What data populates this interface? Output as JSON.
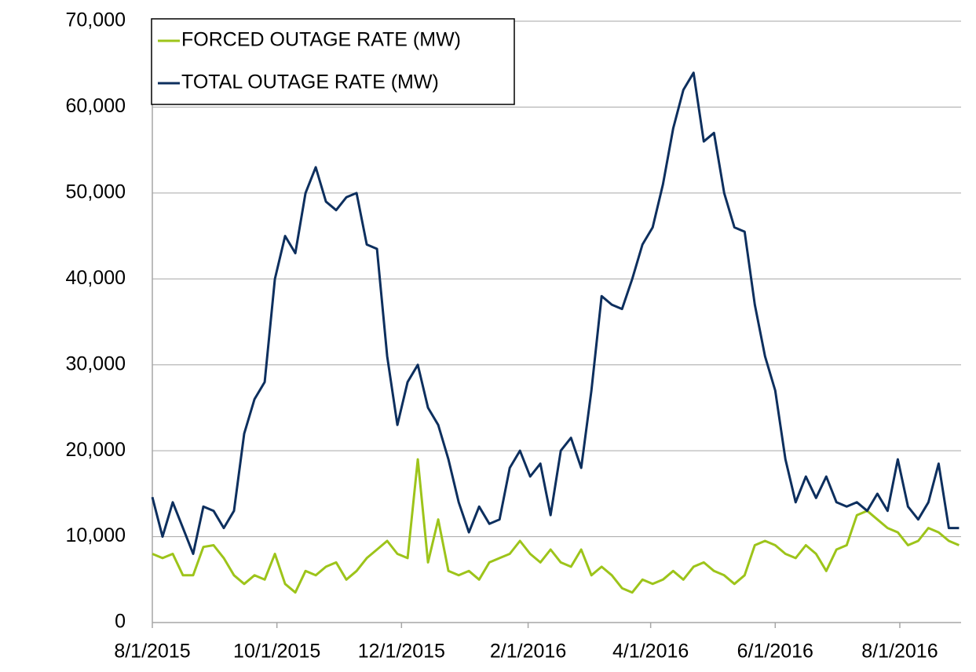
{
  "chart_data": {
    "type": "line",
    "x": [
      "8/1/2015",
      "8/6/2015",
      "8/11/2015",
      "8/16/2015",
      "8/21/2015",
      "8/26/2015",
      "8/31/2015",
      "9/5/2015",
      "9/10/2015",
      "9/15/2015",
      "9/20/2015",
      "9/25/2015",
      "9/30/2015",
      "10/5/2015",
      "10/10/2015",
      "10/15/2015",
      "10/20/2015",
      "10/25/2015",
      "10/30/2015",
      "11/4/2015",
      "11/9/2015",
      "11/14/2015",
      "11/19/2015",
      "11/24/2015",
      "11/29/2015",
      "12/4/2015",
      "12/9/2015",
      "12/14/2015",
      "12/19/2015",
      "12/24/2015",
      "12/29/2015",
      "1/3/2016",
      "1/8/2016",
      "1/13/2016",
      "1/18/2016",
      "1/23/2016",
      "1/28/2016",
      "2/2/2016",
      "2/7/2016",
      "2/12/2016",
      "2/17/2016",
      "2/22/2016",
      "2/27/2016",
      "3/3/2016",
      "3/8/2016",
      "3/13/2016",
      "3/18/2016",
      "3/23/2016",
      "3/28/2016",
      "4/2/2016",
      "4/7/2016",
      "4/12/2016",
      "4/17/2016",
      "4/22/2016",
      "4/27/2016",
      "5/2/2016",
      "5/7/2016",
      "5/12/2016",
      "5/17/2016",
      "5/22/2016",
      "5/27/2016",
      "6/1/2016",
      "6/6/2016",
      "6/11/2016",
      "6/16/2016",
      "6/21/2016",
      "6/26/2016",
      "7/1/2016",
      "7/6/2016",
      "7/11/2016",
      "7/16/2016",
      "7/21/2016",
      "7/26/2016",
      "7/31/2016",
      "8/5/2016",
      "8/10/2016",
      "8/15/2016",
      "8/20/2016",
      "8/25/2016",
      "8/30/2016"
    ],
    "series": [
      {
        "name": "FORCED OUTAGE RATE (MW)",
        "color": "#9dc41a",
        "values": [
          8000,
          7500,
          8000,
          5500,
          5500,
          8800,
          9000,
          7500,
          5500,
          4500,
          5500,
          5000,
          8000,
          4500,
          3500,
          6000,
          5500,
          6500,
          7000,
          5000,
          6000,
          7500,
          8500,
          9500,
          8000,
          7500,
          19000,
          7000,
          12000,
          6000,
          5500,
          6000,
          5000,
          7000,
          7500,
          8000,
          9500,
          8000,
          7000,
          8500,
          7000,
          6500,
          8500,
          5500,
          6500,
          5500,
          4000,
          3500,
          5000,
          4500,
          5000,
          6000,
          5000,
          6500,
          7000,
          6000,
          5500,
          4500,
          5500,
          9000,
          9500,
          9000,
          8000,
          7500,
          9000,
          8000,
          6000,
          8500,
          9000,
          12500,
          13000,
          12000,
          11000,
          10500,
          9000,
          9500,
          11000,
          10500,
          9500,
          9000
        ]
      },
      {
        "name": "TOTAL OUTAGE RATE (MW)",
        "color": "#0d2f5e",
        "values": [
          14600,
          10000,
          14000,
          11000,
          8000,
          13500,
          13000,
          11000,
          13000,
          22000,
          26000,
          28000,
          40000,
          45000,
          43000,
          50000,
          53000,
          49000,
          48000,
          49500,
          50000,
          44000,
          43500,
          31000,
          23000,
          28000,
          30000,
          25000,
          23000,
          19000,
          14000,
          10500,
          13500,
          11500,
          12000,
          18000,
          20000,
          17000,
          18500,
          12500,
          20000,
          21500,
          18000,
          27000,
          38000,
          37000,
          36500,
          40000,
          44000,
          46000,
          51000,
          57500,
          62000,
          64000,
          56000,
          57000,
          50000,
          46000,
          45500,
          37000,
          31000,
          27000,
          19000,
          14000,
          17000,
          14500,
          17000,
          14000,
          13500,
          14000,
          13000,
          15000,
          13000,
          19000,
          13500,
          12000,
          14000,
          18500,
          11000,
          11000
        ]
      }
    ],
    "xlim": [
      "8/1/2015",
      "8/31/2016"
    ],
    "xticks": [
      "8/1/2015",
      "10/1/2015",
      "12/1/2015",
      "2/1/2016",
      "4/1/2016",
      "6/1/2016",
      "8/1/2016"
    ],
    "ylim": [
      0,
      70000
    ],
    "yticks": [
      0,
      {
        "value": 10000,
        "label": "10,000"
      },
      {
        "value": 20000,
        "label": "20,000"
      },
      {
        "value": 30000,
        "label": "30,000"
      },
      {
        "value": 40000,
        "label": "40,000"
      },
      {
        "value": 50000,
        "label": "50,000"
      },
      {
        "value": 60000,
        "label": "60,000"
      },
      {
        "value": 70000,
        "label": "70,000"
      }
    ],
    "grid": true,
    "legend": "top-left"
  }
}
